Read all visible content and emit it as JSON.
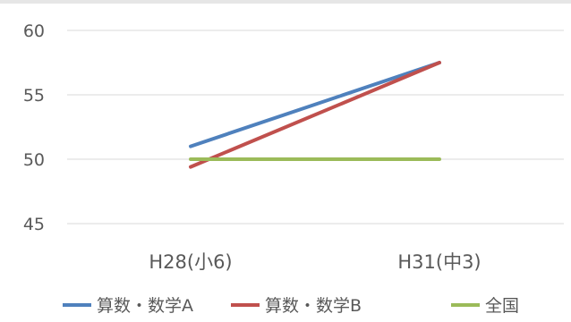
{
  "chart_data": {
    "type": "line",
    "categories": [
      "H28(小6)",
      "H31(中3)"
    ],
    "ylim": [
      45,
      60
    ],
    "yticks": [
      45,
      50,
      55,
      60
    ],
    "grid": true,
    "legend_position": "bottom",
    "series": [
      {
        "name": "算数・数学A",
        "values": [
          51.0,
          57.5
        ],
        "color": "#4f81bd"
      },
      {
        "name": "算数・数学B",
        "values": [
          49.4,
          57.5
        ],
        "color": "#c0504d"
      },
      {
        "name": "全国",
        "values": [
          50.0,
          50.0
        ],
        "color": "#9bbb59"
      }
    ]
  }
}
